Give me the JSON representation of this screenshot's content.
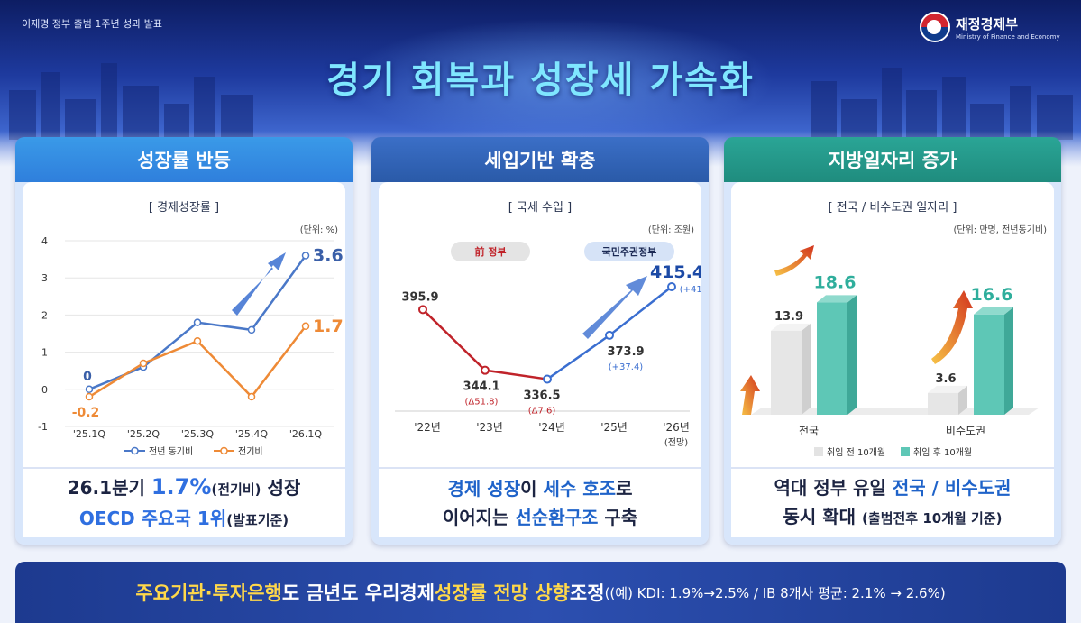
{
  "header": {
    "topline": "이재명 정부 출범 1주년 성과 발표",
    "ministry_kr": "재정경제부",
    "ministry_en": "Ministry of Finance and Economy",
    "title": "경기 회복과 성장세 가속화"
  },
  "panels": [
    {
      "title": "성장률 반등",
      "subtitle": "[ 경제성장률 ]",
      "unit": "(단위: %)"
    },
    {
      "title": "세입기반 확충",
      "subtitle": "[ 국세 수입 ]",
      "unit": "(단위: 조원)",
      "tag_prev": "前 정부",
      "tag_curr": "국민주권정부"
    },
    {
      "title": "지방일자리 증가",
      "subtitle": "[ 전국 / 비수도권 일자리 ]",
      "unit": "(단위: 만명, 전년동기비)"
    }
  ],
  "foot1": {
    "l1a": "26.1분기 ",
    "l1b": "1.7%",
    "l1c": "(전기비)",
    "l1d": " 성장",
    "l2a": "OECD 주요국 1위",
    "l2b": "(발표기준)"
  },
  "foot2": {
    "l1a": "경제 성장",
    "l1b": "이 ",
    "l1c": "세수 호조",
    "l1d": "로",
    "l2a": "이어지는 ",
    "l2b": "선순환구조",
    "l2c": " 구축"
  },
  "foot3": {
    "l1a": "역대 정부 유일 ",
    "l1b": "전국 / 비수도권",
    "l2a": "동시 확대 ",
    "l2b": "(출범전후 10개월 기준)"
  },
  "bottom": {
    "a": "주요기관·투자은행",
    "b": "도 금년도 우리경제 ",
    "c": "성장률 전망 상향",
    "d": " 조정",
    "e": "((예) KDI: 1.9%→2.5% / IB 8개사 평균: 2.1% → 2.6%)"
  },
  "colors": {
    "blue": "#4a78c8",
    "orange": "#ee8a36",
    "red": "#c0232a",
    "teal": "#5ec7b6",
    "gray": "#e3e3e3"
  },
  "chart_data": [
    {
      "type": "line",
      "categories": [
        "'25.1Q",
        "'25.2Q",
        "'25.3Q",
        "'25.4Q",
        "'26.1Q"
      ],
      "ylim": [
        -1,
        4
      ],
      "yticks": [
        "4",
        "3",
        "2",
        "1",
        "0",
        "-1"
      ],
      "series": [
        {
          "name": "전년 동기비",
          "values": [
            0,
            0.6,
            1.8,
            1.6,
            3.6
          ]
        },
        {
          "name": "전기비",
          "values": [
            -0.2,
            0.7,
            1.3,
            -0.2,
            1.7
          ]
        }
      ],
      "labels": {
        "s1_first": "0",
        "s1_last": "3.6",
        "s2_first": "-0.2",
        "s2_last": "1.7"
      }
    },
    {
      "type": "line",
      "categories": [
        "'22년",
        "'23년",
        "'24년",
        "'25년",
        "'26년"
      ],
      "cat_note": "(전망)",
      "values": [
        395.9,
        344.1,
        336.5,
        373.9,
        415.4
      ],
      "value_labels": [
        "395.9",
        "344.1",
        "336.5",
        "373.9",
        "415.4"
      ],
      "change_labels": [
        "",
        "(Δ51.8)",
        "(Δ7.6)",
        "(+37.4)",
        "(+41.5)"
      ]
    },
    {
      "type": "bar",
      "categories": [
        "전국",
        "비수도권"
      ],
      "series": [
        {
          "name": "취임 전 10개월",
          "values": [
            13.9,
            3.6
          ],
          "labels": [
            "13.9",
            "3.6"
          ]
        },
        {
          "name": "취임 후 10개월",
          "values": [
            18.6,
            16.6
          ],
          "labels": [
            "18.6",
            "16.6"
          ]
        }
      ]
    }
  ]
}
